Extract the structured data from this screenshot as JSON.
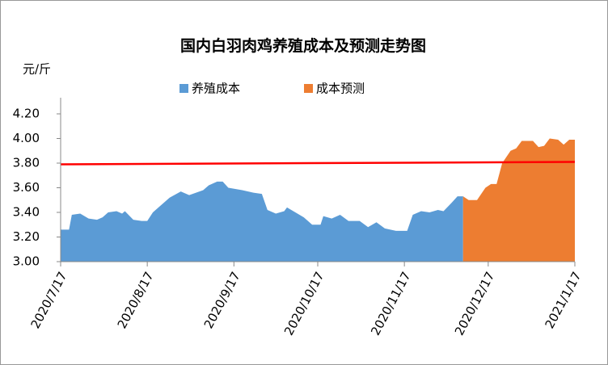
{
  "chart_data": {
    "type": "area",
    "title": "国内白羽肉鸡养殖成本及预测走势图",
    "y_axis_label": "元/斤",
    "xlim": [
      "2020/7/17",
      "2021/1/17"
    ],
    "xticks": [
      "2020/7/17",
      "2020/8/17",
      "2020/9/17",
      "2020/10/17",
      "2020/11/17",
      "2020/12/17",
      "2021/1/17"
    ],
    "ylim": [
      3.0,
      4.2
    ],
    "yticks": [
      {
        "value": 3.0,
        "label": "3.00"
      },
      {
        "value": 3.2,
        "label": "3.20"
      },
      {
        "value": 3.4,
        "label": "3.40"
      },
      {
        "value": 3.6,
        "label": "3.60"
      },
      {
        "value": 3.8,
        "label": "3.80"
      },
      {
        "value": 4.0,
        "label": "4.00"
      },
      {
        "value": 4.2,
        "label": "4.20"
      }
    ],
    "grid": false,
    "legend": "top",
    "series": [
      {
        "name": "养殖成本",
        "color": "#5b9bd5",
        "x": [
          "2020/7/17",
          "2020/7/20",
          "2020/7/21",
          "2020/7/24",
          "2020/7/27",
          "2020/7/30",
          "2020/8/1",
          "2020/8/3",
          "2020/8/6",
          "2020/8/8",
          "2020/8/9",
          "2020/8/12",
          "2020/8/15",
          "2020/8/17",
          "2020/8/19",
          "2020/8/22",
          "2020/8/25",
          "2020/8/29",
          "2020/9/1",
          "2020/9/6",
          "2020/9/8",
          "2020/9/11",
          "2020/9/13",
          "2020/9/15",
          "2020/9/20",
          "2020/9/24",
          "2020/9/27",
          "2020/9/29",
          "2020/10/2",
          "2020/10/5",
          "2020/10/6",
          "2020/10/9",
          "2020/10/12",
          "2020/10/15",
          "2020/10/18",
          "2020/10/19",
          "2020/10/22",
          "2020/10/25",
          "2020/10/28",
          "2020/11/1",
          "2020/11/4",
          "2020/11/7",
          "2020/11/10",
          "2020/11/14",
          "2020/11/18",
          "2020/11/20",
          "2020/11/23",
          "2020/11/26",
          "2020/11/29",
          "2020/12/1",
          "2020/12/4",
          "2020/12/6",
          "2020/12/8"
        ],
        "values": [
          3.26,
          3.26,
          3.38,
          3.39,
          3.35,
          3.34,
          3.36,
          3.4,
          3.41,
          3.39,
          3.41,
          3.34,
          3.33,
          3.33,
          3.4,
          3.46,
          3.52,
          3.57,
          3.54,
          3.58,
          3.62,
          3.65,
          3.65,
          3.6,
          3.58,
          3.56,
          3.55,
          3.42,
          3.39,
          3.41,
          3.44,
          3.4,
          3.36,
          3.3,
          3.3,
          3.37,
          3.35,
          3.38,
          3.33,
          3.33,
          3.28,
          3.32,
          3.27,
          3.25,
          3.25,
          3.38,
          3.41,
          3.4,
          3.42,
          3.41,
          3.48,
          3.53,
          3.53
        ]
      },
      {
        "name": "成本预测",
        "color": "#ed7d31",
        "x": [
          "2020/12/8",
          "2020/12/10",
          "2020/12/13",
          "2020/12/16",
          "2020/12/18",
          "2020/12/20",
          "2020/12/22",
          "2020/12/25",
          "2020/12/27",
          "2020/12/29",
          "2021/1/2",
          "2021/1/4",
          "2021/1/6",
          "2021/1/8",
          "2021/1/11",
          "2021/1/13",
          "2021/1/15",
          "2021/1/17"
        ],
        "values": [
          3.53,
          3.5,
          3.5,
          3.6,
          3.63,
          3.63,
          3.8,
          3.9,
          3.92,
          3.98,
          3.98,
          3.93,
          3.94,
          4.0,
          3.99,
          3.95,
          3.99,
          3.99
        ]
      }
    ],
    "trend_line": {
      "color": "#ff0000",
      "x": [
        "2020/7/17",
        "2021/1/17"
      ],
      "values": [
        3.79,
        3.81
      ]
    }
  }
}
